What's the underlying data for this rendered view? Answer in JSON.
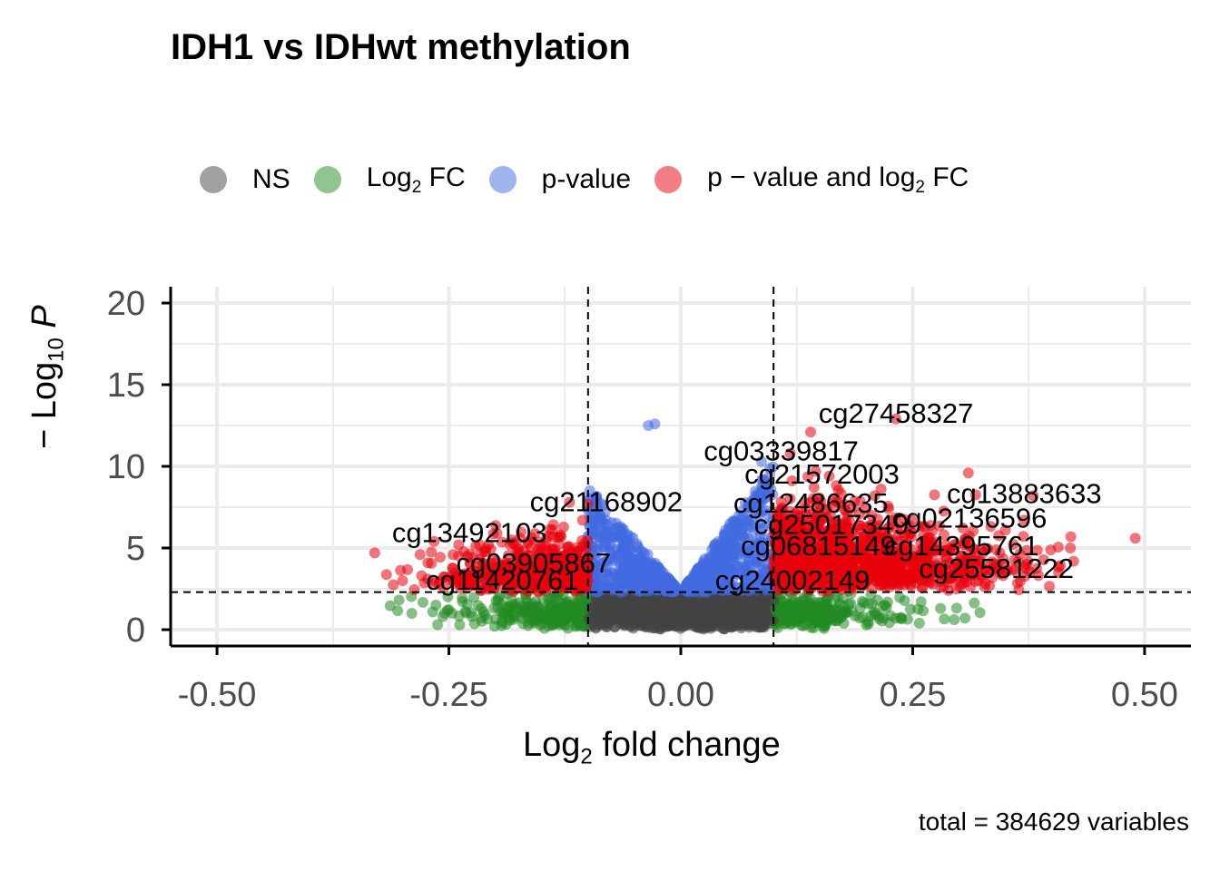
{
  "title": "IDH1 vs IDHwt methylation",
  "caption": "total = 384629 variables",
  "legend": [
    {
      "label": "NS",
      "color": "#444444"
    },
    {
      "label": "Log",
      "sub": "2",
      "suffix": " FC",
      "color": "#228B22"
    },
    {
      "label": "p-value",
      "color": "#4169E1"
    },
    {
      "label": "p − value and log",
      "sub": "2",
      "suffix": " FC",
      "color": "#E8000B"
    }
  ],
  "axes": {
    "x_label_main": "Log",
    "x_label_sub": "2",
    "x_label_rest": " fold change",
    "y_label_prefix": "− Log",
    "y_label_sub": "10",
    "y_label_italic": "P"
  },
  "chart_data": {
    "type": "scatter",
    "title": "IDH1 vs IDHwt methylation",
    "xlabel": "Log2 fold change",
    "ylabel": "-Log10 P",
    "xlim": [
      -0.55,
      0.55
    ],
    "ylim": [
      -1,
      21
    ],
    "x_ticks": [
      -0.5,
      -0.25,
      0.0,
      0.25,
      0.5
    ],
    "x_tick_labels": [
      "-0.50",
      "-0.25",
      "0.00",
      "0.25",
      "0.50"
    ],
    "y_ticks": [
      0,
      5,
      10,
      15,
      20
    ],
    "y_tick_labels": [
      "0",
      "5",
      "10",
      "15",
      "20"
    ],
    "grid": true,
    "legend_position": "top",
    "fc_cutoff": 0.1,
    "p_cutoff_log10": 2.3,
    "colors": {
      "NS": "#444444",
      "FC": "#228B22",
      "P": "#4169E1",
      "P_FC": "#E8000B"
    },
    "total_variables": 384629,
    "labeled_points": [
      {
        "name": "cg27458327",
        "x": 0.232,
        "y": 12.9
      },
      {
        "name": "cg03339817",
        "x": 0.118,
        "y": 10.8
      },
      {
        "name": "cg21572003",
        "x": 0.16,
        "y": 9.4
      },
      {
        "name": "cg13883633",
        "x": 0.38,
        "y": 8.2
      },
      {
        "name": "cg21168902",
        "x": -0.1,
        "y": 7.7
      },
      {
        "name": "cg12486635",
        "x": 0.15,
        "y": 7.6
      },
      {
        "name": "cg02136596",
        "x": 0.37,
        "y": 6.7
      },
      {
        "name": "cg13492103",
        "x": -0.13,
        "y": 5.8
      },
      {
        "name": "cg25017349",
        "x": 0.18,
        "y": 6.3
      },
      {
        "name": "cg14395761",
        "x": 0.42,
        "y": 5.0
      },
      {
        "name": "cg06815149",
        "x": 0.16,
        "y": 5.0
      },
      {
        "name": "cg03905867",
        "x": -0.1,
        "y": 4.4
      },
      {
        "name": "cg25581222",
        "x": 0.35,
        "y": 3.6
      },
      {
        "name": "cg11420761",
        "x": -0.3,
        "y": 3.0
      },
      {
        "name": "cg24002149",
        "x": 0.14,
        "y": 2.9
      }
    ],
    "extreme_points": [
      {
        "x": -0.33,
        "y": 4.7,
        "group": "P_FC"
      },
      {
        "x": -0.12,
        "y": 7.8,
        "group": "P_FC"
      },
      {
        "x": 0.14,
        "y": 12.1,
        "group": "P_FC"
      },
      {
        "x": 0.31,
        "y": 9.6,
        "group": "P_FC"
      },
      {
        "x": 0.49,
        "y": 5.6,
        "group": "P_FC"
      },
      {
        "x": -0.035,
        "y": 12.5,
        "group": "P"
      },
      {
        "x": -0.028,
        "y": 12.6,
        "group": "P"
      },
      {
        "x": 0.087,
        "y": 10.3,
        "group": "P"
      },
      {
        "x": -0.29,
        "y": 1.0,
        "group": "FC"
      },
      {
        "x": 0.28,
        "y": 1.3,
        "group": "FC"
      }
    ]
  }
}
